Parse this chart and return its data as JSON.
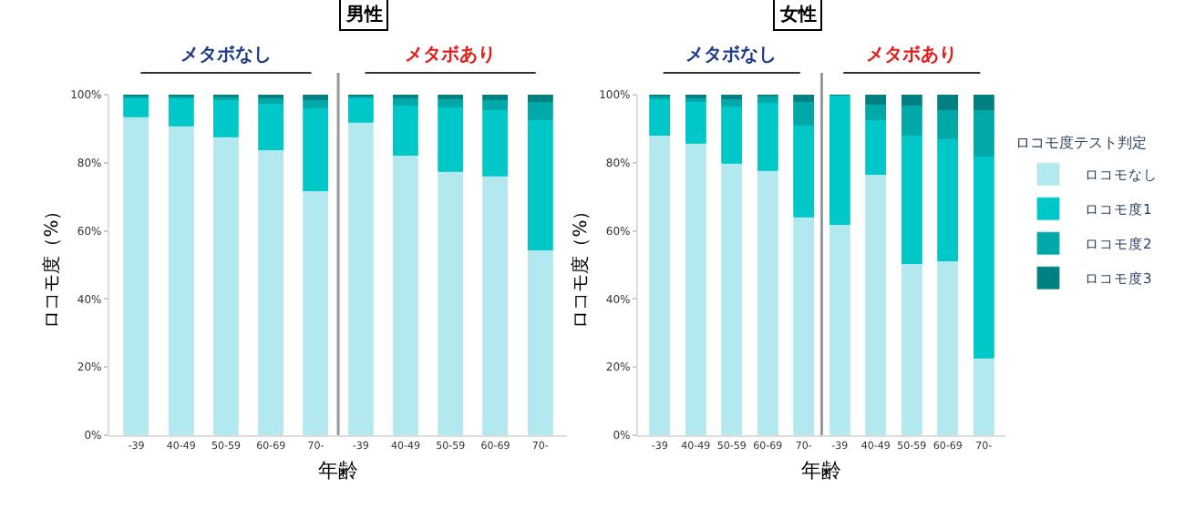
{
  "chart_data": [
    {
      "type": "bar",
      "title": "男性",
      "xlabel": "年齢",
      "ylabel": "ロコモ度（%）",
      "stacked": true,
      "categories": [
        "-39",
        "40-49",
        "50-59",
        "60-69",
        "70-",
        "-39",
        "40-49",
        "50-59",
        "60-69",
        "70-"
      ],
      "annotations": [
        "メタボなし",
        "メタボあり"
      ],
      "ylim": [
        0,
        100
      ],
      "yticks": [
        {
          "value": 0,
          "label": "0%"
        },
        {
          "value": 20,
          "label": "20%"
        },
        {
          "value": 40,
          "label": "40%"
        },
        {
          "value": 60,
          "label": "60%"
        },
        {
          "value": 80,
          "label": "80%"
        },
        {
          "value": 100,
          "label": "100%"
        }
      ],
      "series": [
        {
          "color": "#b3e8ef",
          "values": [
            93.5,
            90.9,
            87.7,
            83.8,
            71.7,
            91.9,
            82.2,
            77.5,
            76.1,
            54.4
          ]
        },
        {
          "color": "#00c8c8",
          "values": [
            5.7,
            8.1,
            10.7,
            13.6,
            24.3,
            7.3,
            14.7,
            18.9,
            19.5,
            38.3
          ]
        },
        {
          "color": "#00a8a8",
          "values": [
            0.5,
            0.6,
            1.0,
            1.6,
            2.4,
            0.5,
            2.3,
            2.5,
            2.8,
            5.2
          ]
        },
        {
          "color": "#008080",
          "values": [
            0.3,
            0.4,
            0.6,
            1.0,
            1.6,
            0.3,
            0.8,
            1.1,
            1.6,
            2.1
          ]
        }
      ]
    },
    {
      "type": "bar",
      "title": "女性",
      "xlabel": "年齢",
      "ylabel": "ロコモ度（%）",
      "stacked": true,
      "legend_title": "ロコモ度テスト判定",
      "categories": [
        "-39",
        "40-49",
        "50-59",
        "60-69",
        "70-",
        "-39",
        "40-49",
        "50-59",
        "60-69",
        "70-"
      ],
      "annotations": [
        "メタボなし",
        "メタボあり"
      ],
      "ylim": [
        0,
        100
      ],
      "yticks": [
        {
          "value": 0,
          "label": "0%"
        },
        {
          "value": 20,
          "label": "20%"
        },
        {
          "value": 40,
          "label": "40%"
        },
        {
          "value": 60,
          "label": "60%"
        },
        {
          "value": 80,
          "label": "80%"
        },
        {
          "value": 100,
          "label": "100%"
        }
      ],
      "legend": "right",
      "series": [
        {
          "name": "ロコモなし",
          "color": "#b3e8ef",
          "values": [
            88.0,
            85.8,
            79.9,
            77.7,
            64.1,
            61.8,
            76.5,
            50.3,
            51.1,
            22.7
          ]
        },
        {
          "name": "ロコモ度1",
          "color": "#00c8c8",
          "values": [
            10.7,
            12.3,
            16.7,
            19.9,
            27.0,
            38.2,
            16.2,
            37.9,
            36.0,
            59.2
          ]
        },
        {
          "name": "ロコモ度2",
          "color": "#00a8a8",
          "values": [
            0.8,
            1.1,
            2.1,
            2.1,
            7.0,
            0,
            4.5,
            8.6,
            8.4,
            13.6
          ]
        },
        {
          "name": "ロコモ度3",
          "color": "#008080",
          "values": [
            0.5,
            0.8,
            1.3,
            0.3,
            1.9,
            0,
            2.8,
            3.2,
            4.5,
            4.5
          ]
        }
      ]
    }
  ]
}
